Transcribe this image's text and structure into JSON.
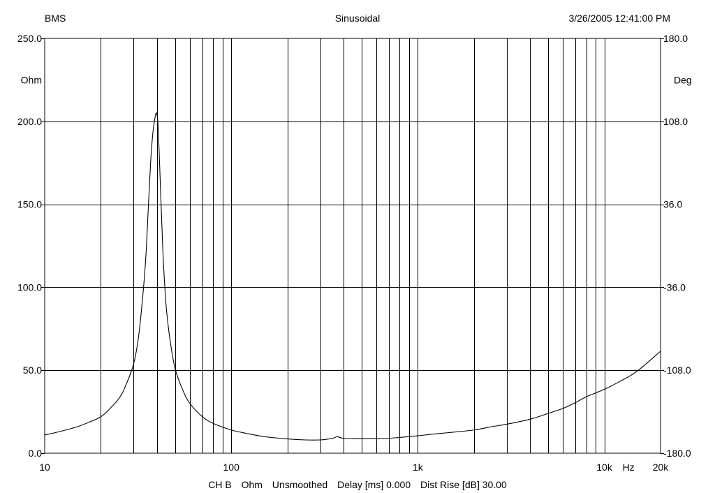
{
  "header": {
    "left": "BMS",
    "center": "Sinusoidal",
    "right": "3/26/2005 12:41:00 PM"
  },
  "footer": {
    "channel": "CH B",
    "unit": "Ohm",
    "smoothing": "Unsmoothed",
    "delay": "Delay [ms] 0.000",
    "dist_rise": "Dist Rise [dB] 30.00"
  },
  "chart_data": {
    "type": "line",
    "title": "",
    "xlabel": "Hz",
    "ylabel": "Ohm",
    "y2label": "Deg",
    "x_scale": "log",
    "xlim": [
      10,
      20000
    ],
    "ylim": [
      0,
      250
    ],
    "y2lim": [
      -180,
      180
    ],
    "grid": true,
    "x_ticks": [
      {
        "value": 10,
        "label": "10"
      },
      {
        "value": 100,
        "label": "100"
      },
      {
        "value": 1000,
        "label": "1k"
      },
      {
        "value": 10000,
        "label": "10k"
      },
      {
        "value": 20000,
        "label": "20k"
      }
    ],
    "y_ticks": [
      {
        "value": 0,
        "label": "0.0"
      },
      {
        "value": 50,
        "label": "50.0"
      },
      {
        "value": 100,
        "label": "100.0"
      },
      {
        "value": 150,
        "label": "150.0"
      },
      {
        "value": 200,
        "label": "200.0"
      },
      {
        "value": 250,
        "label": "250.0"
      }
    ],
    "y2_ticks": [
      {
        "value": -180,
        "label": "-180.0"
      },
      {
        "value": -108,
        "label": "-108.0"
      },
      {
        "value": -36,
        "label": "-36.0"
      },
      {
        "value": 36,
        "label": "36.0"
      },
      {
        "value": 108,
        "label": "108.0"
      },
      {
        "value": 180,
        "label": "180.0"
      }
    ],
    "series": [
      {
        "x": [
          10,
          12,
          15,
          18,
          20,
          22,
          25,
          27,
          30,
          32,
          34,
          35,
          36,
          37,
          38,
          39,
          39.5,
          40,
          40.5,
          41,
          42,
          43,
          44,
          45,
          47,
          50,
          55,
          60,
          70,
          80,
          100,
          120,
          150,
          200,
          250,
          300,
          330,
          350,
          370,
          380,
          400,
          450,
          500,
          600,
          700,
          800,
          1000,
          1200,
          1500,
          2000,
          2500,
          3000,
          4000,
          5000,
          6000,
          7000,
          8000,
          10000,
          12000,
          15000,
          20000
        ],
        "y": [
          11,
          13,
          16,
          19.5,
          22,
          26,
          33,
          40,
          54,
          72,
          102,
          122,
          150,
          176,
          193,
          202,
          205,
          204,
          198,
          184,
          152,
          122,
          101,
          86,
          68,
          51,
          38,
          30,
          22,
          18,
          14,
          12,
          10,
          8.6,
          8,
          8,
          8.5,
          9,
          10,
          9.5,
          9,
          8.8,
          8.7,
          8.8,
          9,
          9.5,
          10.5,
          11.5,
          12.5,
          14,
          16,
          17.5,
          20.5,
          24,
          27,
          30.5,
          34,
          38.5,
          43,
          49.5,
          61.5
        ]
      }
    ]
  }
}
